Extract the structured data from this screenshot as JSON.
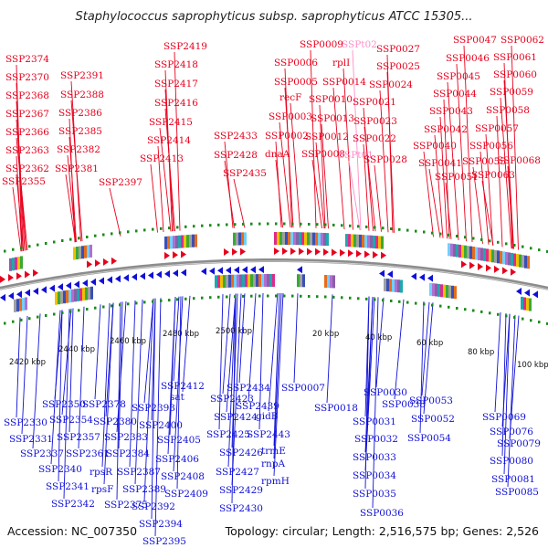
{
  "title": "Staphylococcus saprophyticus subsp. saprophyticus ATCC 15305...",
  "footer": {
    "accession": "Accession: NC_007350",
    "summary": "Topology: circular; Length: 2,516,575 bp; Genes: 2,526"
  },
  "colors": {
    "forward": "#e8001c",
    "reverse": "#1010d8",
    "trna": "#ff8ec8",
    "backbone": "#8c8c8c",
    "tick": "#1a8a1a"
  },
  "scale_labels": [
    "2420 kbp",
    "2440 kbp",
    "2460 kbp",
    "2480 kbp",
    "2500 kbp",
    "20 kbp",
    "40 kbp",
    "60 kbp",
    "80 kbp",
    "100 kbp"
  ],
  "top_labels": [
    "SSP2374",
    "SSP2370",
    "SSP2368",
    "SSP2367",
    "SSP2366",
    "SSP2363",
    "SSP2362",
    "SSP2355",
    "SSP2391",
    "SSP2388",
    "SSP2386",
    "SSP2385",
    "SSP2382",
    "SSP2381",
    "SSP2397",
    "SSP2419",
    "SSP2418",
    "SSP2417",
    "SSP2416",
    "SSP2415",
    "SSP2414",
    "SSP2413",
    "SSP2433",
    "SSP2428",
    "SSP2435",
    "SSP0009",
    "SSP0006",
    "SSP0005",
    "recF",
    "SSP0003",
    "SSP0002",
    "dnaA",
    "SSPt02",
    "rplI",
    "SSP0014",
    "SSP0010",
    "SSP0013",
    "SSP0012",
    "SSP0008",
    "SSPt01",
    "SSP0027",
    "SSP0025",
    "SSP0024",
    "SSP0021",
    "SSP0023",
    "SSP0022",
    "SSP0028",
    "SSP0047",
    "SSP0046",
    "SSP0045",
    "SSP0044",
    "SSP0043",
    "SSP0042",
    "SSP0040",
    "SSP0041",
    "SSP0051",
    "SSP0062",
    "SSP0061",
    "SSP0060",
    "SSP0059",
    "SSP0058",
    "SSP0057",
    "SSP0056",
    "SSP0055",
    "SSP0063",
    "SSP0068"
  ],
  "bottom_labels": [
    "SSP2330",
    "SSP2331",
    "SSP2337",
    "SSP2340",
    "SSP2341",
    "SSP2342",
    "SSP2350",
    "SSP2354",
    "SSP2357",
    "SSP2361",
    "rpsR",
    "rpsF",
    "SSP2375",
    "SSP2378",
    "SSP2380",
    "SSP2383",
    "SSP2384",
    "SSP2387",
    "SSP2389",
    "SSP2392",
    "SSP2394",
    "SSP2395",
    "sat",
    "SSP2393",
    "SSP2400",
    "SSP2405",
    "SSP2406",
    "SSP2408",
    "SSP2409",
    "SSP2412",
    "SSP2423",
    "SSP2424",
    "SSP2425",
    "SSP2426",
    "SSP2427",
    "SSP2429",
    "SSP2430",
    "SSP2434",
    "SSP2439",
    "gidB",
    "SSP2443",
    "trmE",
    "rnpA",
    "rpmH",
    "SSP0007",
    "SSP0018",
    "SSP0030",
    "SSP0038",
    "SSP0031",
    "SSP0032",
    "SSP0033",
    "SSP0034",
    "SSP0035",
    "SSP0036",
    "SSP0053",
    "SSP0052",
    "SSP0054",
    "SSP0069",
    "SSP0076",
    "SSP0079",
    "SSP0080",
    "SSP0081",
    "SSP0085"
  ]
}
